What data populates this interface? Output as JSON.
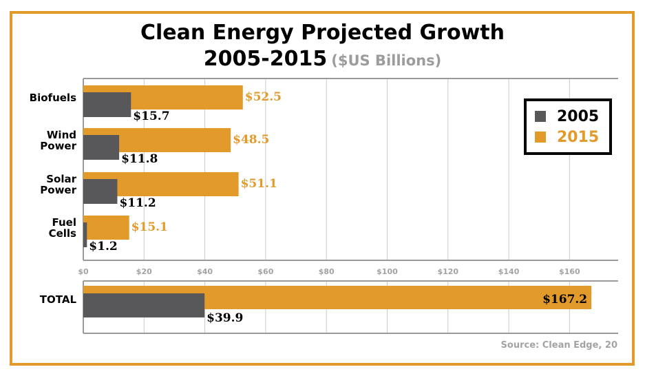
{
  "title_line1": "Clean Energy Projected Growth",
  "title_line2": "2005-2015",
  "title_units": "($US Billions)",
  "source": "Source: Clean Edge, 20",
  "colors": {
    "series_2005": "#58585a",
    "series_2015": "#e29a2a",
    "frame": "#e29a2a",
    "grid": "#c8c8c8"
  },
  "chart_data": {
    "type": "bar",
    "orientation": "horizontal",
    "categories": [
      [
        "Biofuels"
      ],
      [
        "Wind",
        "Power"
      ],
      [
        "Solar",
        "Power"
      ],
      [
        "Fuel",
        "Cells"
      ]
    ],
    "series": [
      {
        "name": "2005",
        "values": [
          15.7,
          11.8,
          11.2,
          1.2
        ],
        "labels": [
          "$15.7",
          "$11.8",
          "$11.2",
          "$1.2"
        ]
      },
      {
        "name": "2015",
        "values": [
          52.5,
          48.5,
          51.1,
          15.1
        ],
        "labels": [
          "$52.5",
          "$48.5",
          "$51.1",
          "$15.1"
        ]
      }
    ],
    "total": {
      "label": "TOTAL",
      "values": [
        39.9,
        167.2
      ],
      "labels": [
        "$39.9",
        "$167.2"
      ]
    },
    "xlim": [
      0,
      176
    ],
    "xticks": [
      0,
      20,
      40,
      60,
      80,
      100,
      120,
      140,
      160
    ],
    "xtick_labels": [
      "$0",
      "$20",
      "$40",
      "$60",
      "$80",
      "$100",
      "$120",
      "$140",
      "$160"
    ],
    "grid": true,
    "legend": {
      "position": "top-right",
      "entries": [
        "2005",
        "2015"
      ]
    }
  }
}
